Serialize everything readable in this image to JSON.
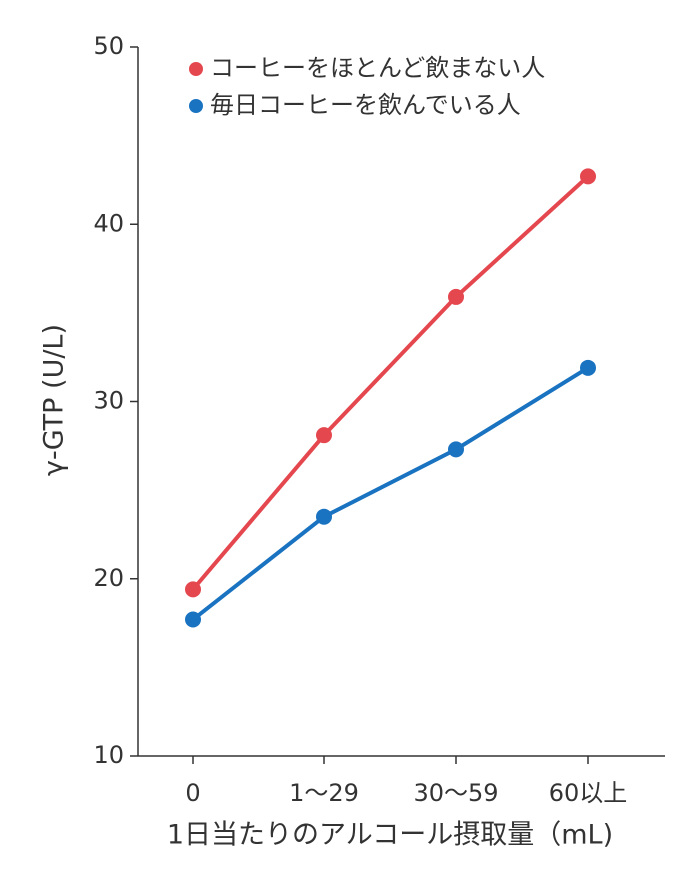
{
  "chart_data": {
    "type": "line",
    "x_label": "1日当たりのアルコール摂取量（mL)",
    "y_label": "γ-GTP (U/L)",
    "categories": [
      "0",
      "1〜29",
      "30〜59",
      "60以上"
    ],
    "series": [
      {
        "name": "コーヒーをほとんど飲まない人",
        "color": "#e5474f",
        "values": [
          19.4,
          28.1,
          35.9,
          42.7
        ]
      },
      {
        "name": "毎日コーヒーを飲んでいる人",
        "color": "#1a73c1",
        "values": [
          17.7,
          23.5,
          27.3,
          31.9
        ]
      }
    ],
    "ylim": [
      10,
      50
    ],
    "yticks": [
      10,
      20,
      30,
      40,
      50
    ],
    "grid": false,
    "legend": "top-left"
  }
}
